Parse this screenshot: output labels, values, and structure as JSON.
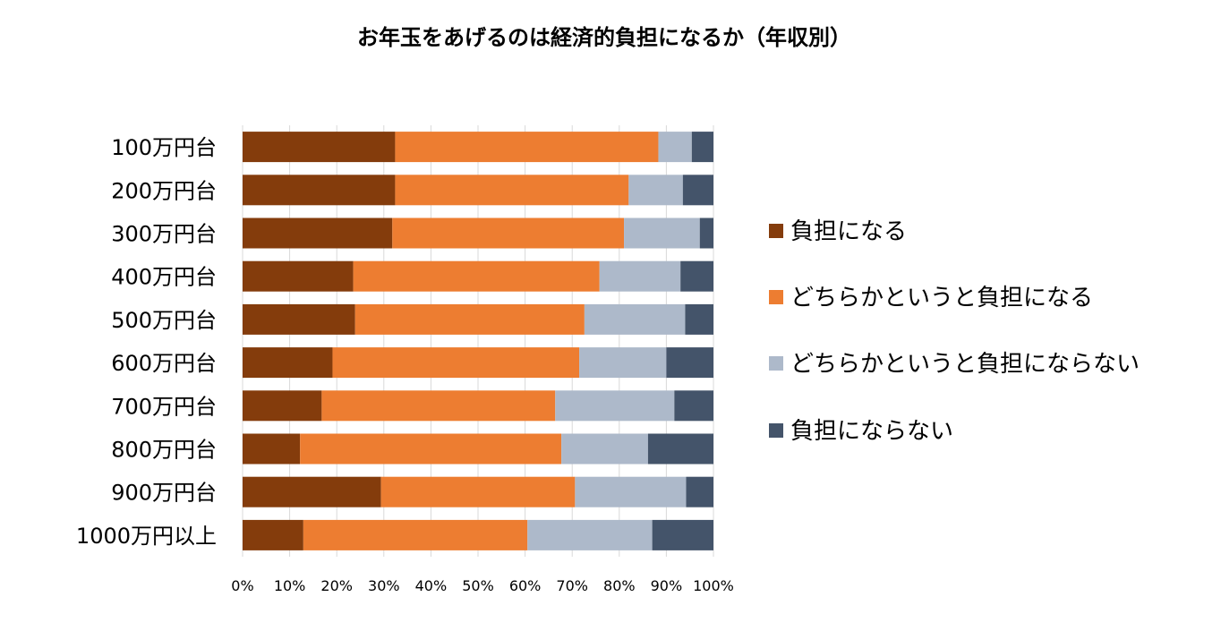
{
  "chart_data": {
    "type": "bar",
    "orientation": "horizontal",
    "stacked": "percent",
    "title": "お年玉をあげるのは経済的負担になるか（年収別）",
    "categories": [
      "100万円台",
      "200万円台",
      "300万円台",
      "400万円台",
      "500万円台",
      "600万円台",
      "700万円台",
      "800万円台",
      "900万円台",
      "1000万円以上"
    ],
    "series": [
      {
        "name": "負担になる",
        "color": "#843c0c",
        "values": [
          32.4,
          32.4,
          31.8,
          23.5,
          23.9,
          19.1,
          16.8,
          12.2,
          29.4,
          12.9
        ]
      },
      {
        "name": "どちらかというと負担になる",
        "color": "#ed7d31",
        "values": [
          55.9,
          49.6,
          49.2,
          52.3,
          48.7,
          52.4,
          49.6,
          55.5,
          41.2,
          47.6
        ]
      },
      {
        "name": "どちらかというと負担にならない",
        "color": "#adb9ca",
        "values": [
          7.1,
          11.5,
          16.1,
          17.2,
          21.4,
          18.5,
          25.3,
          18.4,
          23.6,
          26.5
        ]
      },
      {
        "name": "負担にならない",
        "color": "#44546a",
        "values": [
          4.6,
          6.5,
          2.9,
          7.0,
          6.0,
          10.0,
          8.3,
          13.9,
          5.8,
          13.0
        ]
      }
    ],
    "xlim": [
      0,
      100
    ],
    "xticks": [
      "0%",
      "10%",
      "20%",
      "30%",
      "40%",
      "50%",
      "60%",
      "70%",
      "80%",
      "90%",
      "100%"
    ],
    "grid": "vertical",
    "legend": "right"
  }
}
